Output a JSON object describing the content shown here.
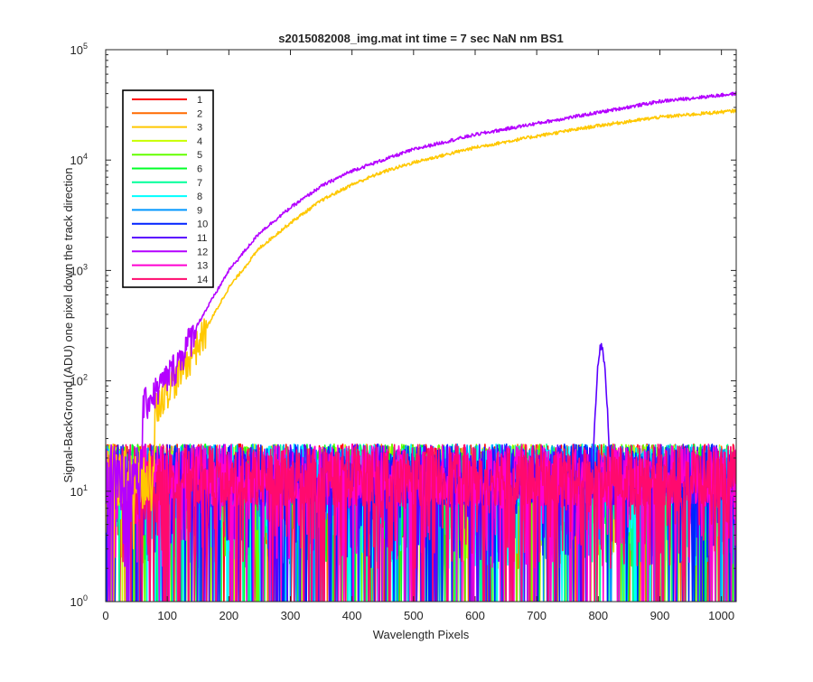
{
  "chart_data": {
    "type": "line",
    "title": "s2015082008_img.mat int time = 7 sec  NaN nm BS1",
    "xlabel": "Wavelength Pixels",
    "ylabel": "Signal-BackGround (ADU) one pixel down the track direction",
    "x_scale": "linear",
    "y_scale": "log",
    "xlim": [
      0,
      1024
    ],
    "ylim": [
      1,
      100000
    ],
    "x_ticks": [
      "0",
      "100",
      "200",
      "300",
      "400",
      "500",
      "600",
      "700",
      "800",
      "900",
      "1000"
    ],
    "y_ticks": [
      {
        "base": "10",
        "exp": "0"
      },
      {
        "base": "10",
        "exp": "1"
      },
      {
        "base": "10",
        "exp": "2"
      },
      {
        "base": "10",
        "exp": "3"
      },
      {
        "base": "10",
        "exp": "4"
      },
      {
        "base": "10",
        "exp": "5"
      }
    ],
    "grid": false,
    "legend_position": "top-left",
    "series": [
      {
        "name": "1",
        "color": "#ff0000",
        "kind": "noise"
      },
      {
        "name": "2",
        "color": "#ff6a00",
        "kind": "noise"
      },
      {
        "name": "3",
        "color": "#ffc800",
        "kind": "ramp",
        "x": [
          80,
          100,
          120,
          150,
          200,
          250,
          300,
          350,
          400,
          450,
          500,
          600,
          700,
          800,
          900,
          1024
        ],
        "values": [
          60,
          85,
          120,
          220,
          700,
          1600,
          2700,
          4300,
          6000,
          7800,
          9500,
          13000,
          16500,
          20500,
          24500,
          28000
        ]
      },
      {
        "name": "4",
        "color": "#c8ff00",
        "kind": "noise"
      },
      {
        "name": "5",
        "color": "#64ff00",
        "kind": "noise"
      },
      {
        "name": "6",
        "color": "#00ff28",
        "kind": "noise"
      },
      {
        "name": "7",
        "color": "#00ff9a",
        "kind": "noise"
      },
      {
        "name": "8",
        "color": "#00ffff",
        "kind": "noise"
      },
      {
        "name": "9",
        "color": "#0096ff",
        "kind": "noise"
      },
      {
        "name": "10",
        "color": "#0022ff",
        "kind": "noise"
      },
      {
        "name": "11",
        "color": "#5a00ff",
        "kind": "noise",
        "peak": {
          "x": 805,
          "value": 215
        }
      },
      {
        "name": "12",
        "color": "#b400ff",
        "kind": "ramp",
        "x": [
          60,
          80,
          100,
          120,
          150,
          200,
          250,
          300,
          350,
          400,
          450,
          500,
          600,
          700,
          800,
          900,
          1024
        ],
        "values": [
          60,
          80,
          110,
          160,
          330,
          1000,
          2200,
          3700,
          5800,
          8000,
          10000,
          12500,
          17000,
          21500,
          27000,
          34000,
          40000
        ]
      },
      {
        "name": "13",
        "color": "#ff00d2",
        "kind": "noise"
      },
      {
        "name": "14",
        "color": "#ff0a6e",
        "kind": "noise"
      }
    ]
  }
}
